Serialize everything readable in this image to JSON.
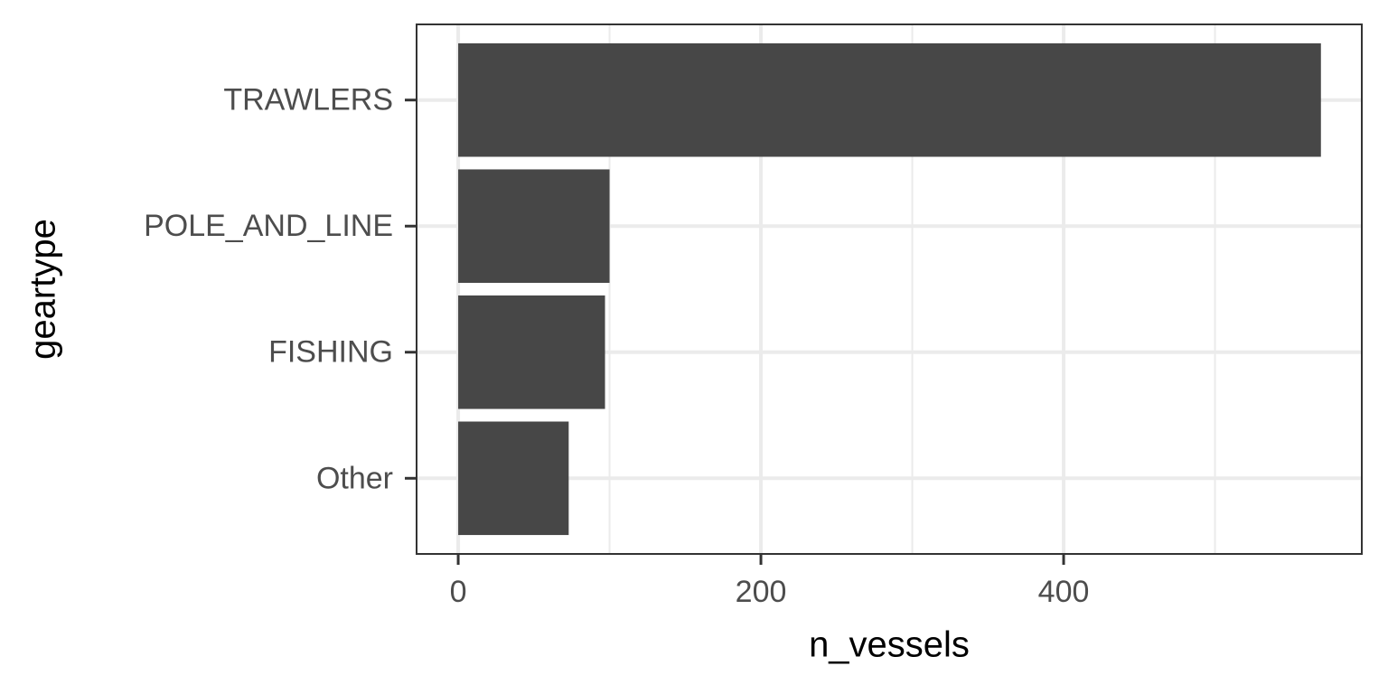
{
  "chart_data": {
    "type": "bar",
    "orientation": "horizontal",
    "categories": [
      "TRAWLERS",
      "POLE_AND_LINE",
      "FISHING",
      "Other"
    ],
    "values": [
      570,
      100,
      97,
      73
    ],
    "color": "#474747",
    "x_label": "n_vessels",
    "y_label": "geartype",
    "xlim": [
      -27.5,
      597
    ],
    "xticks": [
      0,
      200,
      400
    ],
    "x_minor_grid": [
      100,
      300,
      500
    ],
    "grid": true
  }
}
